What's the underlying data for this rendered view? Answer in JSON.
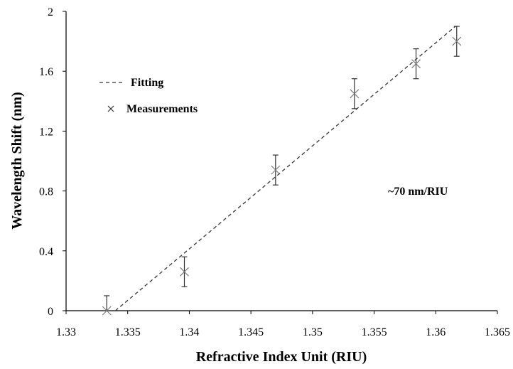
{
  "chart_data": {
    "type": "scatter",
    "title": "",
    "xlabel": "Refractive Index Unit (RIU)",
    "ylabel": "Wavelength Shift (nm)",
    "xlim": [
      1.33,
      1.365
    ],
    "ylim": [
      0,
      2
    ],
    "x_ticks": [
      "1.33",
      "1.335",
      "1.34",
      "1.345",
      "1.35",
      "1.355",
      "1.36",
      "1.365"
    ],
    "y_ticks": [
      "0",
      "0.4",
      "0.8",
      "1.2",
      "1.6",
      "2"
    ],
    "grid": false,
    "legend_position": "top-left",
    "series": [
      {
        "name": "Fitting",
        "style": "dashed-line",
        "x": [
          1.334,
          1.3616
        ],
        "y": [
          0.0,
          1.9
        ]
      },
      {
        "name": "Measurements",
        "style": "x-marker-with-error-bars",
        "x": [
          1.3333,
          1.3396,
          1.347,
          1.3534,
          1.3584,
          1.3617
        ],
        "y": [
          0.0,
          0.26,
          0.94,
          1.45,
          1.65,
          1.8
        ],
        "error": [
          0.1,
          0.1,
          0.1,
          0.1,
          0.1,
          0.1
        ]
      }
    ],
    "annotations": [
      "~70 nm/RIU"
    ]
  }
}
